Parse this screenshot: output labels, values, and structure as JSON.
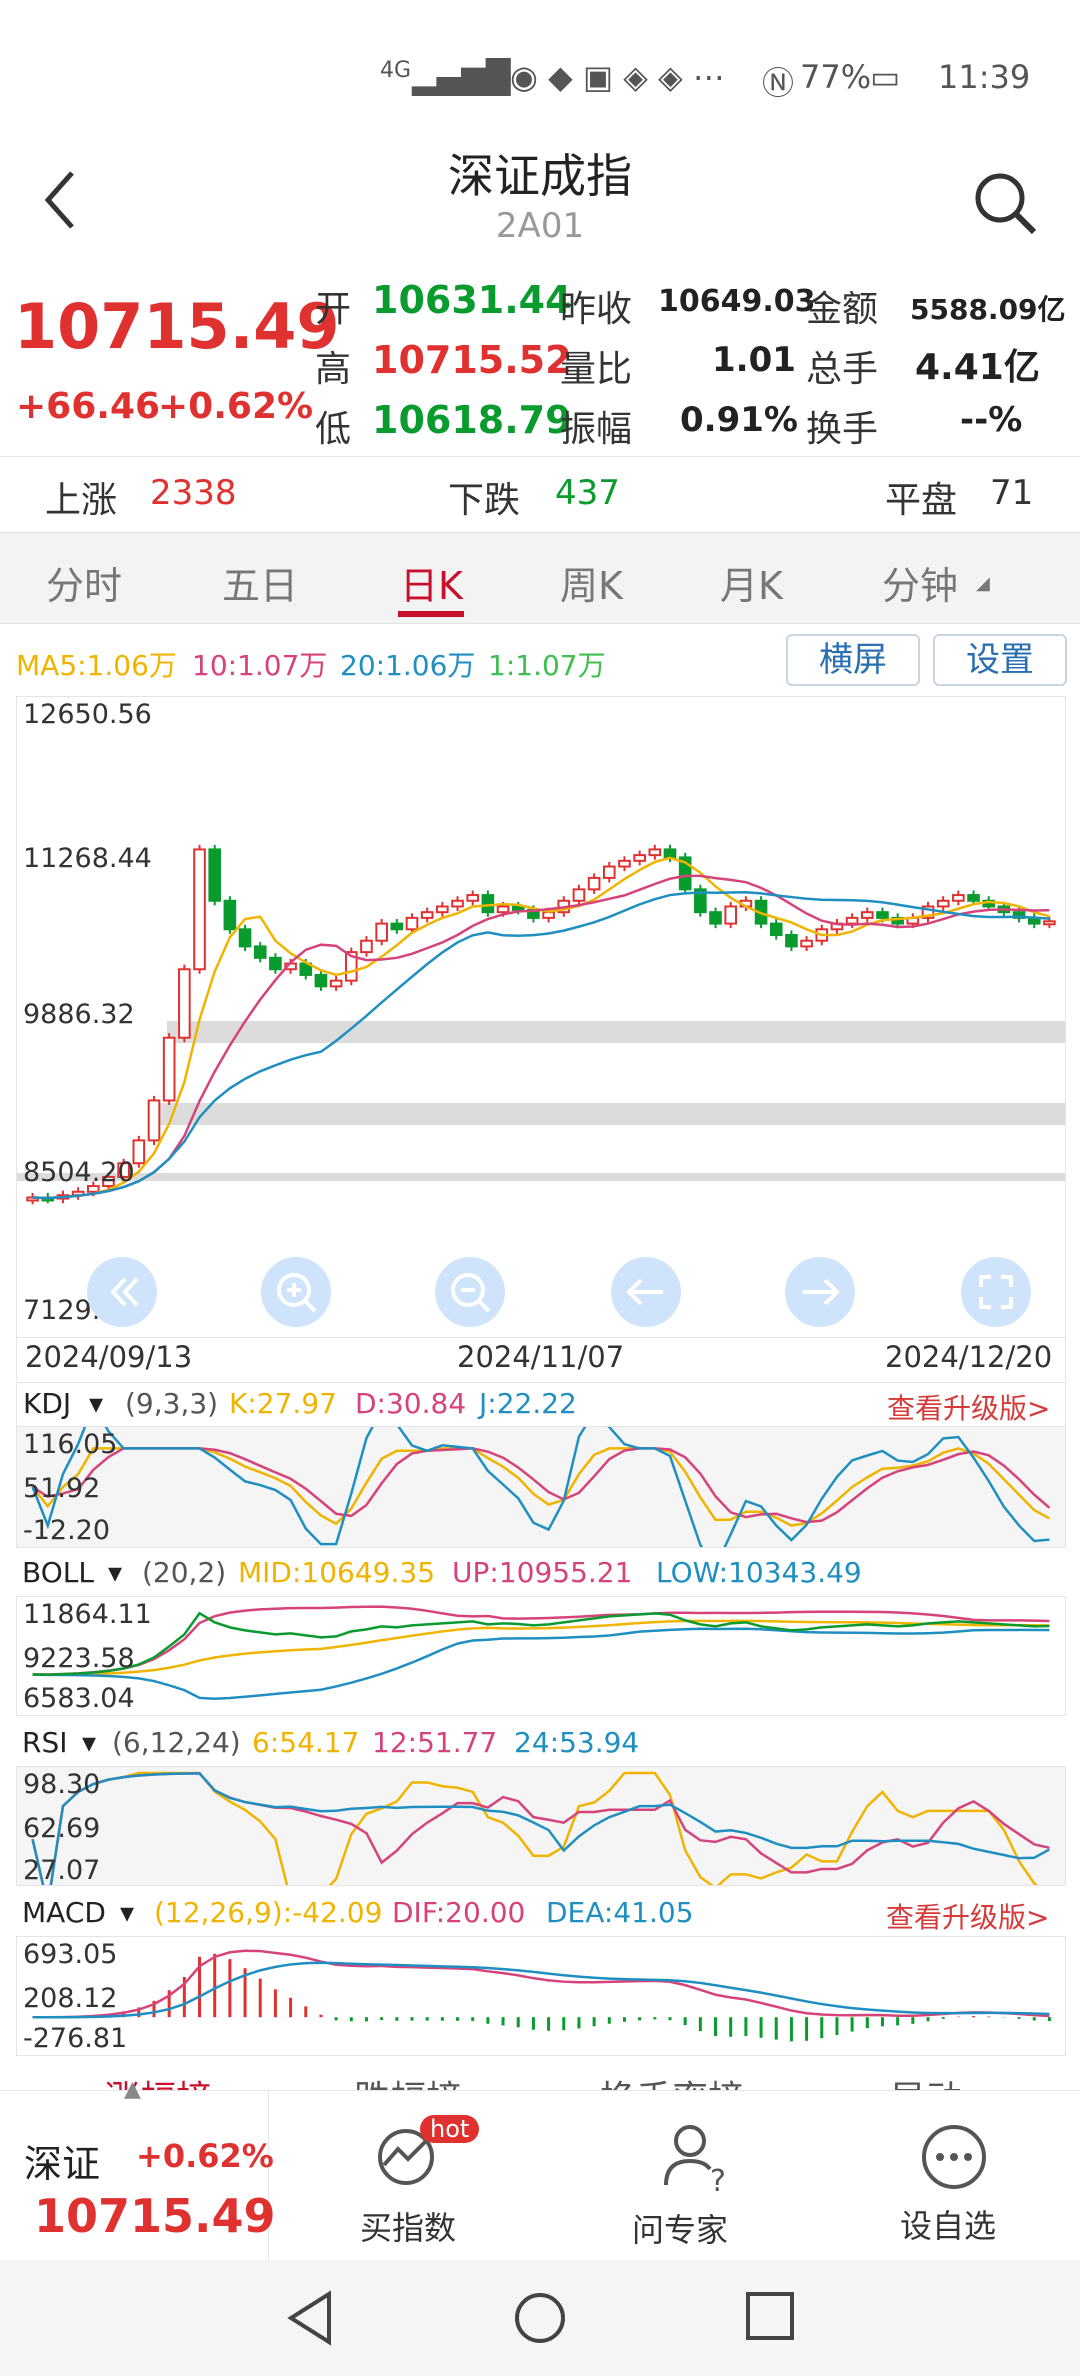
{
  "status_bar": {
    "network": "4G",
    "battery": "77%",
    "time": "11:39"
  },
  "header": {
    "title": "深证成指",
    "subtitle": "2A01"
  },
  "quote": {
    "price": "10715.49",
    "change": "+66.46",
    "change_pct": "+0.62%",
    "open_label": "开",
    "open": "10631.44",
    "prev_close_label": "昨收",
    "prev_close": "10649.03",
    "amount_label": "金额",
    "amount": "5588.09亿",
    "high_label": "高",
    "high": "10715.52",
    "vol_ratio_label": "量比",
    "vol_ratio": "1.01",
    "total_hand_label": "总手",
    "total_hand": "4.41亿",
    "low_label": "低",
    "low": "10618.79",
    "amplitude_label": "振幅",
    "amplitude": "0.91%",
    "turnover_label": "换手",
    "turnover": "--%"
  },
  "breadth": {
    "up_label": "上涨",
    "up": "2338",
    "down_label": "下跌",
    "down": "437",
    "flat_label": "平盘",
    "flat": "71"
  },
  "tabs": [
    "分时",
    "五日",
    "日K",
    "周K",
    "月K",
    "分钟"
  ],
  "active_tab": "日K",
  "kline": {
    "ma_labels": {
      "ma5": "MA5:1.06万",
      "ma10": "10:1.07万",
      "ma20": "20:1.06万",
      "ma1": "1:1.07万"
    },
    "landscape_btn": "横屏",
    "settings_btn": "设置",
    "y_ticks": [
      "12650.56",
      "11268.44",
      "9886.32",
      "8504.20",
      "7129.86"
    ],
    "dates": [
      "2024/09/13",
      "2024/11/07",
      "2024/12/20"
    ]
  },
  "kdj": {
    "name": "KDJ",
    "params": "(9,3,3)",
    "k": "K:27.97",
    "d": "D:30.84",
    "j": "J:22.22",
    "upgrade": "查看升级版>",
    "y_ticks": [
      "116.05",
      "51.92",
      "-12.20"
    ]
  },
  "boll": {
    "name": "BOLL",
    "params": "(20,2)",
    "mid": "MID:10649.35",
    "up": "UP:10955.21",
    "low": "LOW:10343.49",
    "y_ticks": [
      "11864.11",
      "9223.58",
      "6583.04"
    ]
  },
  "rsi": {
    "name": "RSI",
    "params": "(6,12,24)",
    "r6": "6:54.17",
    "r12": "12:51.77",
    "r24": "24:53.94",
    "y_ticks": [
      "98.30",
      "62.69",
      "27.07"
    ]
  },
  "macd": {
    "name": "MACD",
    "params": "(12,26,9):-42.09",
    "dif": "DIF:20.00",
    "dea": "DEA:41.05",
    "upgrade": "查看升级版>",
    "y_ticks": [
      "693.05",
      "208.12",
      "-276.81"
    ]
  },
  "bottom_tabs": [
    "涨幅榜",
    "跌幅榜",
    "换手率榜",
    "异动"
  ],
  "bottom_bar": {
    "name": "深证",
    "change_pct": "+0.62%",
    "price": "10715.49",
    "buy_index": "买指数",
    "hot": "hot",
    "ask_expert": "问专家",
    "set_favorite": "设自选"
  },
  "colors": {
    "up": "#e03131",
    "down": "#0a9b2e",
    "ma5": "#f0b400",
    "ma10": "#d6437a",
    "ma20": "#1f8fc2",
    "accent": "#c8102e"
  },
  "chart_data": {
    "type": "candlestick",
    "y_range": [
      7129.86,
      12650.56
    ],
    "closes": [
      8300,
      8290,
      8320,
      8350,
      8400,
      8480,
      8600,
      8800,
      9150,
      9700,
      10300,
      11350,
      10900,
      10650,
      10500,
      10400,
      10300,
      10350,
      10250,
      10150,
      10200,
      10450,
      10550,
      10700,
      10650,
      10750,
      10800,
      10850,
      10900,
      10950,
      10800,
      10850,
      10820,
      10750,
      10800,
      10900,
      11000,
      11100,
      11200,
      11250,
      11300,
      11350,
      11280,
      11000,
      10800,
      10700,
      10850,
      10900,
      10700,
      10600,
      10500,
      10550,
      10650,
      10700,
      10750,
      10800,
      10750,
      10700,
      10750,
      10850,
      10900,
      10950,
      10900,
      10850,
      10800,
      10750,
      10700,
      10720
    ]
  }
}
